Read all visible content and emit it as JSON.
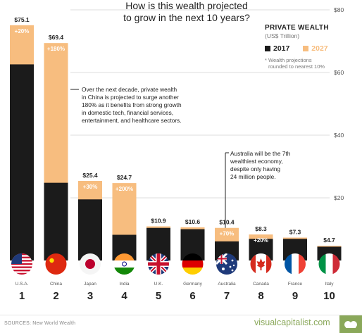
{
  "title_line1": "How is this wealth projected",
  "title_line2": "to grow in the next 10 years?",
  "legend": {
    "title": "PRIVATE WEALTH",
    "unit": "(US$ Trillion)",
    "label_2017": "2017",
    "label_2027": "2027",
    "note_line1": "* Wealth projections",
    "note_line2": "rounded to nearest 10%"
  },
  "colors": {
    "y2017": "#1b1b1b",
    "y2027": "#f7bd7f",
    "grid": "#dcdcdc",
    "brand": "#8aa85a"
  },
  "annotation_china": [
    "Over the next decade, private wealth",
    "in China is projected to surge another",
    "180% as it benefits from strong growth",
    "in domestic tech, financial services,",
    "entertainment, and healthcare sectors."
  ],
  "annotation_australia": [
    "Australia will be the 7th",
    "wealthiest economy,",
    "despite only having",
    "24 million people."
  ],
  "footer": {
    "source": "SOURCES: New World Wealth",
    "brand": "visualcapitalist.com"
  },
  "chart_data": {
    "type": "bar",
    "categories": [
      "U.S.A.",
      "China",
      "Japan",
      "India",
      "U.K.",
      "Germany",
      "Australia",
      "Canada",
      "France",
      "Italy"
    ],
    "ranks": [
      "1",
      "2",
      "3",
      "4",
      "5",
      "6",
      "7",
      "8",
      "9",
      "10"
    ],
    "flag_icons": [
      "usa-flag-icon",
      "china-flag-icon",
      "japan-flag-icon",
      "india-flag-icon",
      "uk-flag-icon",
      "germany-flag-icon",
      "australia-flag-icon",
      "canada-flag-icon",
      "france-flag-icon",
      "italy-flag-icon"
    ],
    "series": [
      {
        "name": "2017",
        "values": [
          62.6,
          24.8,
          19.5,
          8.2,
          10.4,
          10.0,
          6.1,
          6.9,
          6.9,
          4.4
        ]
      },
      {
        "name": "2027",
        "values": [
          75.1,
          69.4,
          25.4,
          24.7,
          10.9,
          10.6,
          10.4,
          8.3,
          7.3,
          4.7
        ]
      }
    ],
    "value_labels": [
      "$75.1",
      "$69.4",
      "$25.4",
      "$24.7",
      "$10.9",
      "$10.6",
      "$10.4",
      "$8.3",
      "$7.3",
      "$4.7"
    ],
    "growth_labels": [
      "+20%",
      "+180%",
      "+30%",
      "+200%",
      "",
      "",
      "+70%",
      "+20%",
      "",
      ""
    ],
    "ylim": [
      0,
      80
    ],
    "yticks": [
      20,
      40,
      60,
      80
    ],
    "ytick_labels": [
      "$20",
      "$40",
      "$60",
      "$80"
    ],
    "grid": true,
    "legend_position": "top-right"
  }
}
